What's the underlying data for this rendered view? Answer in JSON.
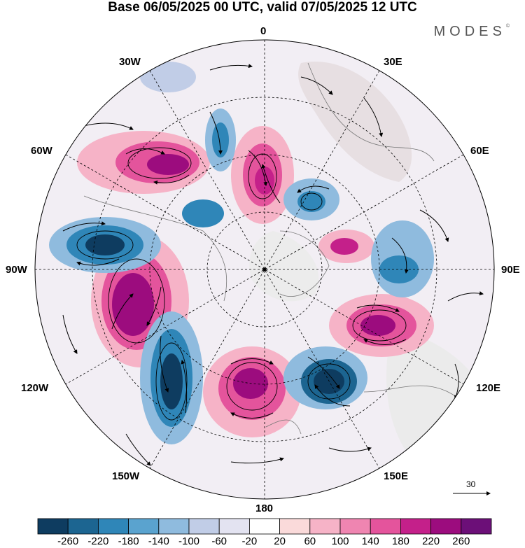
{
  "title": "Base 06/05/2025 00 UTC, valid 07/05/2025 12 UTC",
  "brand": "MODES",
  "brand_mark": "©",
  "meridian_labels": {
    "lon_0": "0",
    "lon_30e": "30E",
    "lon_60e": "60E",
    "lon_90e": "90E",
    "lon_120e": "120E",
    "lon_150e": "150E",
    "lon_180": "180",
    "lon_150w": "150W",
    "lon_120w": "120W",
    "lon_90w": "90W",
    "lon_60w": "60W",
    "lon_30w": "30W"
  },
  "vector_reference": "30",
  "colorbar": {
    "colors": [
      "#0e3c60",
      "#1c6591",
      "#2f86b8",
      "#5aa3cf",
      "#8fbbde",
      "#c1cde7",
      "#e3e3f1",
      "#ffffff",
      "#fadada",
      "#f6b3c7",
      "#ef85b1",
      "#e4549c",
      "#c4208a",
      "#9c0c7e",
      "#6c0f78"
    ],
    "tick_labels": [
      "-260",
      "-220",
      "-180",
      "-140",
      "-100",
      "-60",
      "-20",
      "20",
      "60",
      "100",
      "140",
      "180",
      "220",
      "260"
    ]
  },
  "anomalies": [
    {
      "label": "positive",
      "color": "#e86ab0"
    },
    {
      "label": "negative",
      "color": "#2a78ab"
    }
  ]
}
